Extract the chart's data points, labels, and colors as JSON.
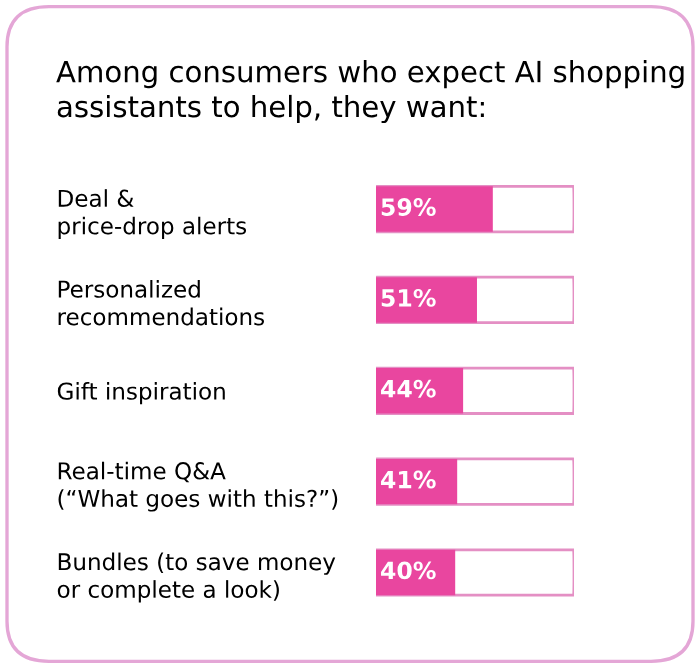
{
  "chart_data": {
    "type": "bar",
    "orientation": "horizontal",
    "title": "Among consumers who expect AI shopping assistants to help, they want:",
    "categories": [
      "Deal &\nprice-drop alerts",
      "Personalized\nrecommendations",
      "Gift inspiration",
      "Real-time Q&A\n(“What goes with this?”)",
      "Bundles (to save money\nor complete a look)"
    ],
    "values": [
      59,
      51,
      44,
      41,
      40
    ],
    "value_labels": [
      "59%",
      "51%",
      "44%",
      "41%",
      "40%"
    ],
    "color": "#e9469f",
    "xlim": [
      0,
      100
    ],
    "tick_labels": "y",
    "grid": false,
    "legend": false
  }
}
